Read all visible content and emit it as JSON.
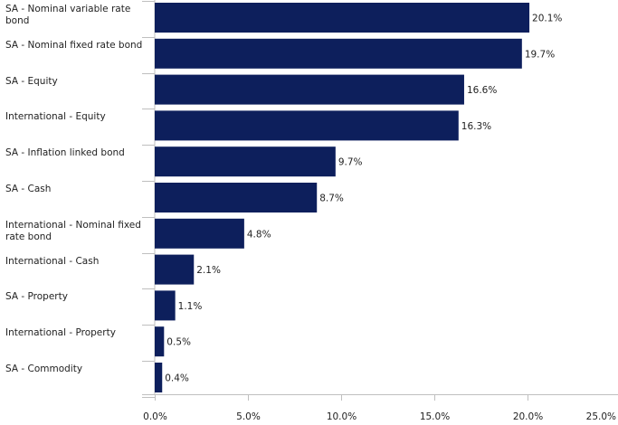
{
  "chart_data": {
    "type": "bar",
    "orientation": "horizontal",
    "categories": [
      "SA - Nominal variable rate bond",
      "SA - Nominal fixed rate bond",
      "SA - Equity",
      "International - Equity",
      "SA - Inflation linked bond",
      "SA - Cash",
      "International - Nominal fixed rate bond",
      "International - Cash",
      "SA - Property",
      "International - Property",
      "SA - Commodity"
    ],
    "values": [
      20.1,
      19.7,
      16.6,
      16.3,
      9.7,
      8.7,
      4.8,
      2.1,
      1.1,
      0.5,
      0.4
    ],
    "data_labels": [
      "20.1%",
      "19.7%",
      "16.6%",
      "16.3%",
      "9.7%",
      "8.7%",
      "4.8%",
      "2.1%",
      "1.1%",
      "0.5%",
      "0.4%"
    ],
    "xlim": [
      0,
      25
    ],
    "x_ticks": [
      0,
      5,
      10,
      15,
      20,
      25
    ],
    "x_tick_labels": [
      "0.0%",
      "5.0%",
      "10.0%",
      "15.0%",
      "20.0%",
      "25.0%"
    ],
    "bar_color": "#0d1f5c",
    "grid": false,
    "title": "",
    "xlabel": "",
    "ylabel": ""
  }
}
